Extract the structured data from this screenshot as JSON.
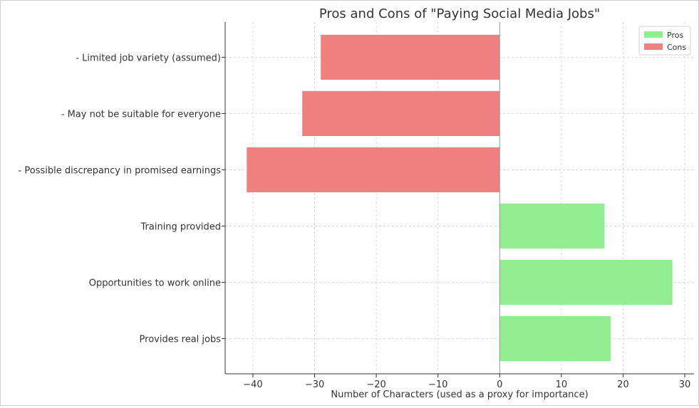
{
  "chart_data": {
    "type": "bar",
    "orientation": "horizontal",
    "title": "Pros and Cons of \"Paying Social Media Jobs\"",
    "xlabel": "Number of Characters (used as a proxy for importance)",
    "ylabel": "",
    "xlim": [
      -44.5,
      31.5
    ],
    "xticks": [
      -40,
      -30,
      -20,
      -10,
      0,
      10,
      20,
      30
    ],
    "xtick_labels": [
      "−40",
      "−30",
      "−20",
      "−10",
      "0",
      "10",
      "20",
      "30"
    ],
    "grid": true,
    "legend_position": "top-right",
    "categories": [
      "- Limited job variety (assumed)",
      "- May not be suitable for everyone",
      "- Possible discrepancy in promised earnings",
      "Training provided",
      "Opportunities to work online",
      "Provides real jobs"
    ],
    "series": [
      {
        "name": "Pros",
        "color": "#90ee90",
        "values": [
          null,
          null,
          null,
          17,
          28,
          18
        ]
      },
      {
        "name": "Cons",
        "color": "#f08080",
        "values": [
          -29,
          -32,
          -41,
          null,
          null,
          null
        ]
      }
    ]
  }
}
